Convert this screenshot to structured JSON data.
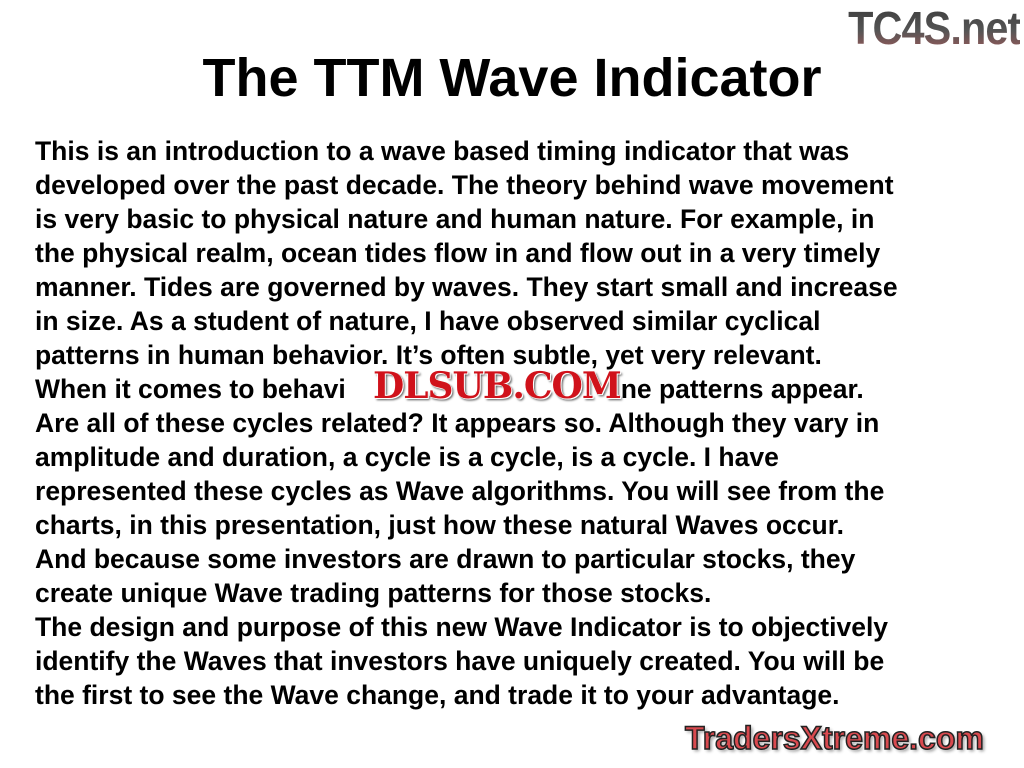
{
  "title": "The TTM Wave Indicator",
  "lines": [
    "This is an introduction to a wave based timing indicator that was",
    "developed over the past decade. The theory behind wave movement",
    "is very basic to physical nature and human nature. For example, in",
    "the physical realm, ocean tides flow in and flow out in a very timely",
    "manner. Tides are governed by waves. They start small and increase",
    "in size. As a student of nature, I have observed similar cyclical",
    "patterns in human behavior. It’s often subtle, yet very relevant.",
    "",
    "Are all of these cycles related? It appears so. Although they vary in",
    "amplitude and duration, a cycle is a cycle, is a cycle. I have",
    "represented these cycles as Wave algorithms. You will see from the",
    "charts, in this presentation, just how these natural Waves occur.",
    "And because some investors are drawn to particular stocks, they",
    "create unique Wave trading patterns for those stocks.",
    "The design and purpose of this new Wave Indicator is to objectively",
    "identify the Waves that investors have uniquely created. You will be",
    "the first to see the Wave change, and trade it to your advantage."
  ],
  "occluded_line": {
    "before": "When it comes to behavi",
    "after": "ne patterns appear."
  },
  "watermarks": {
    "top_right": "TC4S.net",
    "center": "DLSUB.COM",
    "bottom_right": "TradersXtreme.com"
  }
}
